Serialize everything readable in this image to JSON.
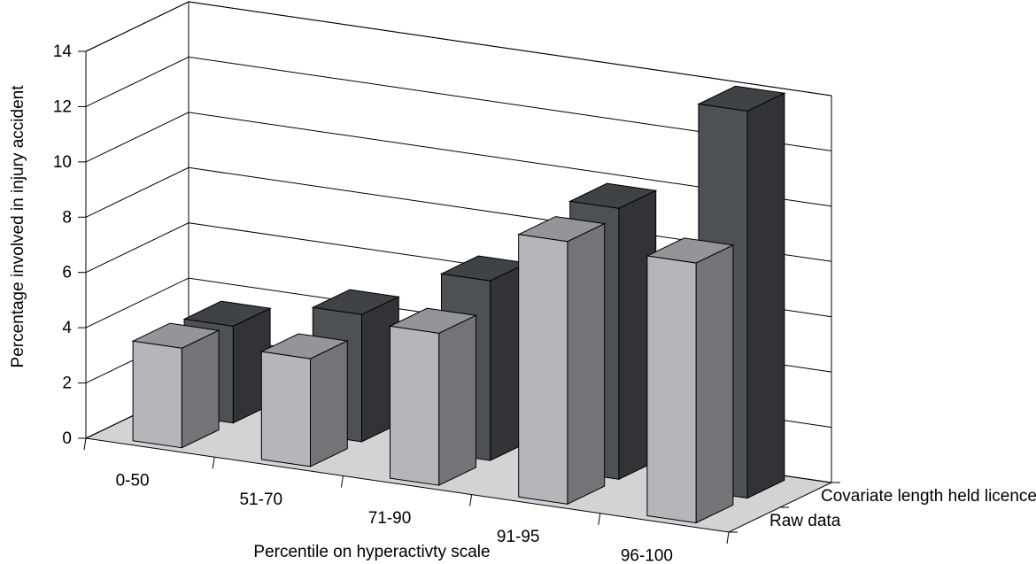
{
  "chart_data": {
    "type": "bar",
    "style": "3d-clustered-depth",
    "title": "",
    "xlabel": "Percentile on hyperactivty scale",
    "ylabel": "Percentage involved in injury accident",
    "ylim": [
      0,
      14
    ],
    "yticks": [
      "0",
      "2",
      "4",
      "6",
      "8",
      "10",
      "12",
      "14"
    ],
    "categories": [
      "0-50",
      "51-70",
      "71-90",
      "91-95",
      "96-100"
    ],
    "series": [
      {
        "name": "Raw data",
        "values": [
          3.6,
          3.9,
          5.5,
          9.5,
          9.4
        ],
        "color": "#b4b6bc"
      },
      {
        "name": "Covariate length held licence",
        "values": [
          3.5,
          4.6,
          6.5,
          9.8,
          14.0
        ],
        "color": "#4d5055"
      }
    ],
    "grid": true,
    "floor_color": "#d3d3d3"
  }
}
